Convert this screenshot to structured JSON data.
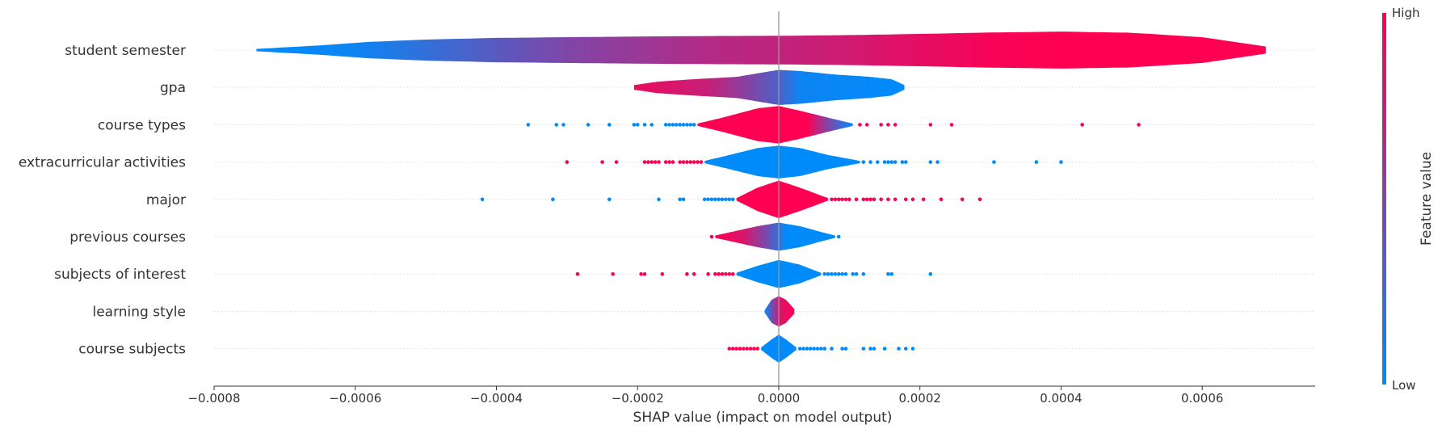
{
  "chart_data": {
    "type": "violin",
    "xlabel": "SHAP value (impact on model output)",
    "xlim": [
      -0.0008,
      0.00076
    ],
    "xticks": [
      -0.0008,
      -0.0006,
      -0.0004,
      -0.0002,
      0.0,
      0.0002,
      0.0004,
      0.0006
    ],
    "xtick_labels": [
      "−0.0008",
      "−0.0006",
      "−0.0004",
      "−0.0002",
      "0.0000",
      "0.0002",
      "0.0004",
      "0.0006"
    ],
    "colorbar": {
      "title": "Feature value",
      "high_label": "High",
      "low_label": "Low",
      "high_color": "#ff0052",
      "low_color": "#008bfb"
    },
    "features": [
      {
        "name": "student semester",
        "range": [
          -0.00074,
          0.00069
        ],
        "profile": [
          [
            -0.00074,
            0.5
          ],
          [
            -0.00065,
            2
          ],
          [
            -0.00058,
            3.5
          ],
          [
            -0.0005,
            4.5
          ],
          [
            -0.0004,
            5.2
          ],
          [
            -0.0003,
            5.5
          ],
          [
            -0.0002,
            5.8
          ],
          [
            -0.0001,
            6
          ],
          [
            0,
            6.1
          ],
          [
            0.0001,
            6.4
          ],
          [
            0.0002,
            6.9
          ],
          [
            0.0003,
            7.5
          ],
          [
            0.0004,
            7.9
          ],
          [
            0.0005,
            7.4
          ],
          [
            0.0006,
            5.5
          ],
          [
            0.00069,
            1.5
          ]
        ],
        "color": [
          [
            -0.00074,
            0.0
          ],
          [
            -0.0006,
            0.05
          ],
          [
            -0.0005,
            0.2
          ],
          [
            -0.0004,
            0.35
          ],
          [
            -0.0003,
            0.5
          ],
          [
            -0.0002,
            0.6
          ],
          [
            -0.0001,
            0.7
          ],
          [
            0,
            0.75
          ],
          [
            0.0001,
            0.82
          ],
          [
            0.0002,
            0.9
          ],
          [
            0.0003,
            0.97
          ],
          [
            0.0004,
            1.0
          ],
          [
            0.00069,
            1.0
          ]
        ],
        "outliers": []
      },
      {
        "name": "gpa",
        "range": [
          -0.000205,
          0.000178
        ],
        "profile": [
          [
            -0.000205,
            1
          ],
          [
            -0.00017,
            2.5
          ],
          [
            -0.00012,
            3.5
          ],
          [
            -6e-05,
            4.5
          ],
          [
            -2e-05,
            6.5
          ],
          [
            0,
            7.5
          ],
          [
            3e-05,
            7
          ],
          [
            8e-05,
            5.5
          ],
          [
            0.00013,
            4.5
          ],
          [
            0.00016,
            3.5
          ],
          [
            0.000178,
            1
          ]
        ],
        "color": [
          [
            -0.000205,
            0.92
          ],
          [
            -0.0001,
            0.78
          ],
          [
            -3e-05,
            0.45
          ],
          [
            0,
            0.3
          ],
          [
            3e-05,
            0.05
          ],
          [
            0.000178,
            0.0
          ]
        ],
        "outliers": []
      },
      {
        "name": "course types",
        "range": [
          -0.000115,
          0.000105
        ],
        "profile": [
          [
            -0.000115,
            0.5
          ],
          [
            -8e-05,
            3
          ],
          [
            -3e-05,
            7
          ],
          [
            0,
            8
          ],
          [
            3e-05,
            6
          ],
          [
            7e-05,
            3
          ],
          [
            0.000105,
            0.5
          ]
        ],
        "color": [
          [
            -0.000115,
            1.0
          ],
          [
            4e-05,
            1.0
          ],
          [
            7e-05,
            0.5
          ],
          [
            0.000105,
            0.0
          ]
        ],
        "outliers": [
          [
            -0.000355,
            0
          ],
          [
            -0.000315,
            0
          ],
          [
            -0.000305,
            0
          ],
          [
            -0.00027,
            0
          ],
          [
            -0.00024,
            0
          ],
          [
            -0.000205,
            0
          ],
          [
            -0.0002,
            0
          ],
          [
            -0.00019,
            0
          ],
          [
            -0.00018,
            0
          ],
          [
            -0.00016,
            0
          ],
          [
            -0.000155,
            0
          ],
          [
            -0.00015,
            0
          ],
          [
            -0.000145,
            0
          ],
          [
            -0.00014,
            0
          ],
          [
            -0.000135,
            0
          ],
          [
            -0.00013,
            0
          ],
          [
            -0.000125,
            0
          ],
          [
            -0.00012,
            0
          ],
          [
            0.000115,
            1
          ],
          [
            0.000125,
            1
          ],
          [
            0.000145,
            1
          ],
          [
            0.000155,
            1
          ],
          [
            0.000165,
            1
          ],
          [
            0.000215,
            1
          ],
          [
            0.000245,
            1
          ],
          [
            0.00043,
            1
          ],
          [
            0.00051,
            1
          ]
        ]
      },
      {
        "name": "extracurricular activities",
        "range": [
          -0.000105,
          0.000115
        ],
        "profile": [
          [
            -0.000105,
            0.5
          ],
          [
            -7e-05,
            3
          ],
          [
            -3e-05,
            6
          ],
          [
            0,
            7
          ],
          [
            3e-05,
            6
          ],
          [
            7e-05,
            3
          ],
          [
            0.000115,
            0.5
          ]
        ],
        "color": [
          [
            -0.000105,
            0.0
          ],
          [
            0.000115,
            0.0
          ]
        ],
        "outliers": [
          [
            -0.0003,
            1
          ],
          [
            -0.00025,
            1
          ],
          [
            -0.00023,
            1
          ],
          [
            -0.00019,
            1
          ],
          [
            -0.000185,
            1
          ],
          [
            -0.00018,
            1
          ],
          [
            -0.000175,
            1
          ],
          [
            -0.00017,
            1
          ],
          [
            -0.00016,
            1
          ],
          [
            -0.000155,
            1
          ],
          [
            -0.00015,
            1
          ],
          [
            -0.00014,
            1
          ],
          [
            -0.000135,
            1
          ],
          [
            -0.00013,
            1
          ],
          [
            -0.000125,
            1
          ],
          [
            -0.00012,
            1
          ],
          [
            -0.000115,
            1
          ],
          [
            -0.00011,
            1
          ],
          [
            0.00012,
            0
          ],
          [
            0.00013,
            0
          ],
          [
            0.00014,
            0
          ],
          [
            0.00015,
            0
          ],
          [
            0.000155,
            0
          ],
          [
            0.00016,
            0
          ],
          [
            0.000165,
            0
          ],
          [
            0.000175,
            0
          ],
          [
            0.00018,
            0
          ],
          [
            0.000215,
            0
          ],
          [
            0.000225,
            0
          ],
          [
            0.000305,
            0
          ],
          [
            0.000365,
            0
          ],
          [
            0.0004,
            0
          ]
        ]
      },
      {
        "name": "major",
        "range": [
          -6e-05,
          7e-05
        ],
        "profile": [
          [
            -6e-05,
            0.5
          ],
          [
            -3e-05,
            5
          ],
          [
            0,
            8
          ],
          [
            3e-05,
            5
          ],
          [
            7e-05,
            0.5
          ]
        ],
        "color": [
          [
            -6e-05,
            1.0
          ],
          [
            7e-05,
            1.0
          ]
        ],
        "outliers": [
          [
            -0.00042,
            0
          ],
          [
            -0.00032,
            0
          ],
          [
            -0.00024,
            0
          ],
          [
            -0.00017,
            0
          ],
          [
            -0.00014,
            0
          ],
          [
            -0.000135,
            0
          ],
          [
            -0.000105,
            0
          ],
          [
            -0.0001,
            0
          ],
          [
            -9.5e-05,
            0
          ],
          [
            -9e-05,
            0
          ],
          [
            -8.5e-05,
            0
          ],
          [
            -8e-05,
            0
          ],
          [
            -7.5e-05,
            0
          ],
          [
            -7e-05,
            0
          ],
          [
            -6.5e-05,
            0
          ],
          [
            7.5e-05,
            1
          ],
          [
            8e-05,
            1
          ],
          [
            8.5e-05,
            1
          ],
          [
            9e-05,
            1
          ],
          [
            9.5e-05,
            1
          ],
          [
            0.0001,
            1
          ],
          [
            0.00011,
            1
          ],
          [
            0.00012,
            1
          ],
          [
            0.000125,
            1
          ],
          [
            0.00013,
            1
          ],
          [
            0.000135,
            1
          ],
          [
            0.000145,
            1
          ],
          [
            0.000155,
            1
          ],
          [
            0.000165,
            1
          ],
          [
            0.00018,
            1
          ],
          [
            0.00019,
            1
          ],
          [
            0.000205,
            1
          ],
          [
            0.00023,
            1
          ],
          [
            0.00026,
            1
          ],
          [
            0.000285,
            1
          ]
        ]
      },
      {
        "name": "previous courses",
        "range": [
          -9e-05,
          8e-05
        ],
        "profile": [
          [
            -9e-05,
            0.5
          ],
          [
            -6e-05,
            2.5
          ],
          [
            -3e-05,
            4.5
          ],
          [
            0,
            6
          ],
          [
            3e-05,
            4.5
          ],
          [
            6e-05,
            2
          ],
          [
            8e-05,
            0.5
          ]
        ],
        "color": [
          [
            -9e-05,
            1.0
          ],
          [
            -5e-05,
            0.85
          ],
          [
            -2e-05,
            0.5
          ],
          [
            0,
            0.2
          ],
          [
            1e-05,
            0.0
          ],
          [
            8e-05,
            0.0
          ]
        ],
        "outliers": [
          [
            -9.5e-05,
            1
          ],
          [
            8.5e-05,
            0
          ]
        ]
      },
      {
        "name": "subjects of interest",
        "range": [
          -6e-05,
          6e-05
        ],
        "profile": [
          [
            -6e-05,
            0.5
          ],
          [
            -3e-05,
            3.5
          ],
          [
            0,
            6
          ],
          [
            3e-05,
            4
          ],
          [
            6e-05,
            0.5
          ]
        ],
        "color": [
          [
            -6e-05,
            0.0
          ],
          [
            6e-05,
            0.0
          ]
        ],
        "outliers": [
          [
            -0.000285,
            1
          ],
          [
            -0.000235,
            1
          ],
          [
            -0.000195,
            1
          ],
          [
            -0.00019,
            1
          ],
          [
            -0.000165,
            1
          ],
          [
            -0.00013,
            1
          ],
          [
            -0.00012,
            1
          ],
          [
            -0.0001,
            1
          ],
          [
            -9e-05,
            1
          ],
          [
            -8.5e-05,
            1
          ],
          [
            -8e-05,
            1
          ],
          [
            -7.5e-05,
            1
          ],
          [
            -7e-05,
            1
          ],
          [
            -6.5e-05,
            1
          ],
          [
            6.5e-05,
            0
          ],
          [
            7e-05,
            0
          ],
          [
            7.5e-05,
            0
          ],
          [
            8e-05,
            0
          ],
          [
            8.5e-05,
            0
          ],
          [
            9e-05,
            0
          ],
          [
            9.5e-05,
            0
          ],
          [
            0.000105,
            0
          ],
          [
            0.00011,
            0
          ],
          [
            0.00012,
            0
          ],
          [
            0.000155,
            0
          ],
          [
            0.00016,
            0
          ],
          [
            0.000215,
            0
          ]
        ]
      },
      {
        "name": "learning style",
        "range": [
          -2e-05,
          2.2e-05
        ],
        "profile": [
          [
            -2e-05,
            0.5
          ],
          [
            -1e-05,
            5
          ],
          [
            0,
            6.5
          ],
          [
            1e-05,
            5
          ],
          [
            2.2e-05,
            1
          ]
        ],
        "color": [
          [
            -2e-05,
            0.0
          ],
          [
            -5e-06,
            0.6
          ],
          [
            0,
            0.85
          ],
          [
            2.2e-05,
            1.0
          ]
        ],
        "outliers": []
      },
      {
        "name": "course subjects",
        "range": [
          -2.5e-05,
          2.5e-05
        ],
        "profile": [
          [
            -2.5e-05,
            0.5
          ],
          [
            -1e-05,
            4
          ],
          [
            0,
            6
          ],
          [
            1e-05,
            4
          ],
          [
            2.5e-05,
            0.5
          ]
        ],
        "color": [
          [
            -2.5e-05,
            0.0
          ],
          [
            2.5e-05,
            0.0
          ]
        ],
        "outliers": [
          [
            -7e-05,
            1
          ],
          [
            -6.5e-05,
            1
          ],
          [
            -6e-05,
            1
          ],
          [
            -5.5e-05,
            1
          ],
          [
            -5e-05,
            1
          ],
          [
            -4.5e-05,
            1
          ],
          [
            -4e-05,
            1
          ],
          [
            -3.5e-05,
            1
          ],
          [
            -3e-05,
            1
          ],
          [
            3e-05,
            0
          ],
          [
            3.5e-05,
            0
          ],
          [
            4e-05,
            0
          ],
          [
            4.5e-05,
            0
          ],
          [
            5e-05,
            0
          ],
          [
            5.5e-05,
            0
          ],
          [
            6e-05,
            0
          ],
          [
            6.5e-05,
            0
          ],
          [
            7.5e-05,
            0
          ],
          [
            9e-05,
            0
          ],
          [
            9.5e-05,
            0
          ],
          [
            0.00012,
            0
          ],
          [
            0.00013,
            0
          ],
          [
            0.000135,
            0
          ],
          [
            0.00015,
            0
          ],
          [
            0.00017,
            0
          ],
          [
            0.00018,
            0
          ],
          [
            0.00019,
            0
          ]
        ]
      }
    ]
  }
}
